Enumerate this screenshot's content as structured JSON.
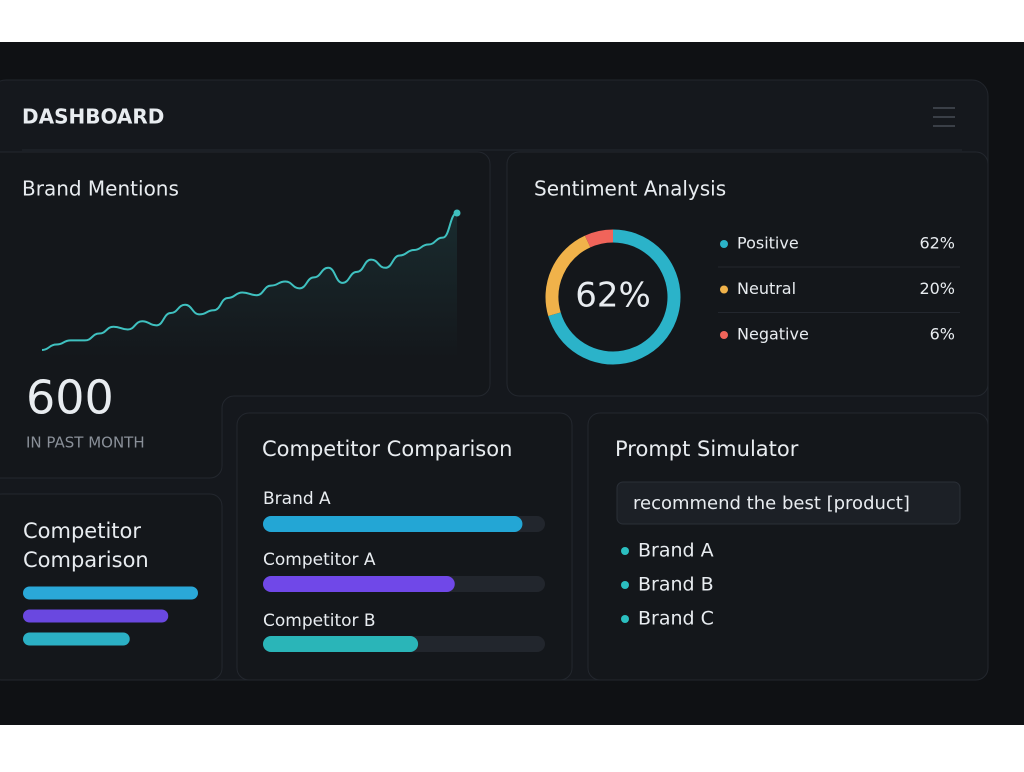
{
  "header": {
    "title": "DASHBOARD"
  },
  "brand_mentions": {
    "title": "Brand Mentions",
    "value": "600",
    "caption": "IN PAST MONTH",
    "chart_data": {
      "type": "line",
      "color": "#3fc1c0",
      "values": [
        0,
        4,
        7,
        7,
        12,
        17,
        15,
        21,
        18,
        27,
        33,
        26,
        29,
        38,
        42,
        40,
        47,
        50,
        45,
        53,
        60,
        49,
        57,
        66,
        60,
        69,
        73,
        77,
        82,
        100
      ]
    }
  },
  "sentiment": {
    "title": "Sentiment Analysis",
    "chart_data": {
      "type": "donut",
      "categories": [
        "Positive",
        "Neutral",
        "Negative"
      ],
      "values": [
        62,
        20,
        6
      ],
      "value_labels": [
        "62%",
        "20%",
        "6%"
      ],
      "colors": [
        "#2bb3c9",
        "#f0b24a",
        "#f0645a"
      ]
    }
  },
  "mini_comparison": {
    "title_lines": [
      "Competitor",
      "Comparison"
    ],
    "chart_data": {
      "type": "hbar",
      "xlim": [
        0,
        100
      ],
      "values": [
        100,
        83,
        61
      ],
      "colors": [
        "#2aa8d8",
        "#6a48e0",
        "#2bb0c4"
      ]
    }
  },
  "competitor_comparison": {
    "title": "Competitor Comparison",
    "chart_data": {
      "type": "hbar",
      "xlim": [
        0,
        100
      ],
      "categories": [
        "Brand A",
        "Competitor A",
        "Competitor B"
      ],
      "values": [
        92,
        68,
        55
      ],
      "colors": [
        "#23a6d5",
        "#7048e8",
        "#2ab5b8"
      ]
    }
  },
  "prompt_simulator": {
    "title": "Prompt Simulator",
    "input": "recommend the best [product]",
    "results": [
      "Brand A",
      "Brand B",
      "Brand C"
    ]
  }
}
